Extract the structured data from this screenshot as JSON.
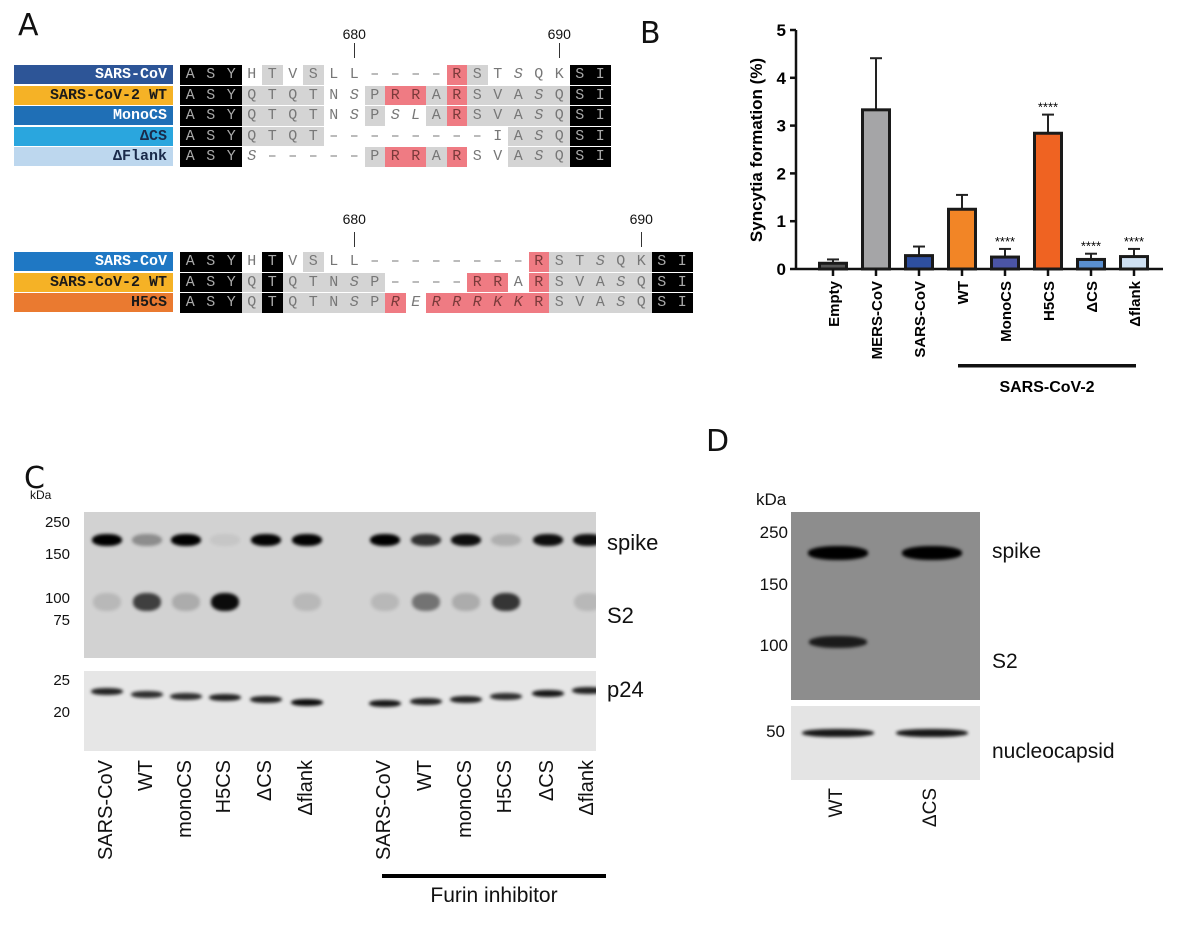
{
  "panels": {
    "a": "A",
    "b": "B",
    "c": "C",
    "d": "D"
  },
  "alignment_top": {
    "positions": [
      {
        "label": "680",
        "col": 8
      },
      {
        "label": "690",
        "col": 18
      }
    ],
    "rows": [
      {
        "name": "SARS-CoV",
        "color": "#2d5597",
        "text_color": "#ffffff",
        "seq": "ASYHTVSLL----RSTSQKSI",
        "shade": "kkk.g.g......rg....kk",
        "italic": "................i...."
      },
      {
        "name": "SARS-CoV-2 WT",
        "color": "#f5b226",
        "text_color": "#1a1a1a",
        "seq": "ASYQTQTNSPRRARSVASQSI",
        "shade": "kkkgggg..grrgrgggggkk",
        "italic": "........i........i..."
      },
      {
        "name": "MonoCS",
        "color": "#1f6fb6",
        "text_color": "#ffffff",
        "seq": "ASYQTQTNSPSLARSVASQSI",
        "shade": "kkkgggg..g..grgggggkk",
        "italic": "........i.ii.....i..."
      },
      {
        "name": "ΔCS",
        "color": "#2aa6de",
        "text_color": "#1a2a4a",
        "seq": "ASYQTQT--------IASQSI",
        "shade": "kkkgggg.........gggkk",
        "italic": ".................i..."
      },
      {
        "name": "ΔFlank",
        "color": "#bdd7ee",
        "text_color": "#1a2a4a",
        "seq": "ASYS-----PRRARSVASQSI",
        "shade": "kkk......grrgr..gggkk",
        "italic": "...i.............i..."
      }
    ]
  },
  "alignment_bottom": {
    "positions": [
      {
        "label": "680",
        "col": 8
      },
      {
        "label": "690",
        "col": 22
      }
    ],
    "rows": [
      {
        "name": "SARS-CoV",
        "color": "#1f78c4",
        "text_color": "#ffffff",
        "seq": "ASYHTVSLL--------RSTSQKSI",
        "shade": "kkk.k.g..........rgggggkk",
        "italic": "....................i...."
      },
      {
        "name": "SARS-CoV-2 WT",
        "color": "#f5b226",
        "text_color": "#1a1a1a",
        "seq": "ASYQTQTNSP----RRARSVASQSI",
        "shade": "kkkgkggggg....rr.rgggggkk",
        "italic": "........i............i..."
      },
      {
        "name": "H5CS",
        "color": "#ea7a30",
        "text_color": "#1a1a1a",
        "seq": "ASYQTQTNSPRERRRKKRSVASQSI",
        "shade": "kkkgkgggggr.rrrrrrgggggkk",
        "italic": "........i.iiiiiii....i..."
      }
    ]
  },
  "chart_data": {
    "type": "bar",
    "ylabel": "Syncytia formation (%)",
    "ylim": [
      0,
      5
    ],
    "yticks": [
      "0",
      "1",
      "2",
      "3",
      "4",
      "5"
    ],
    "categories": [
      "Empty",
      "MERS-CoV",
      "SARS-CoV",
      "WT",
      "MonoCS",
      "H5CS",
      "ΔCS",
      "Δflank"
    ],
    "values": [
      0.12,
      3.33,
      0.28,
      1.25,
      0.25,
      2.84,
      0.2,
      0.26
    ],
    "error_upper": [
      0.2,
      4.41,
      0.47,
      1.55,
      0.42,
      3.23,
      0.32,
      0.42
    ],
    "colors": [
      "#555555",
      "#a5a5a7",
      "#2e4fa0",
      "#f28526",
      "#4b55a6",
      "#ef6322",
      "#5a8fd0",
      "#cfe1f3"
    ],
    "significance": [
      "",
      "",
      "",
      "",
      "****",
      "****",
      "****",
      "****"
    ],
    "group_label": "SARS-CoV-2",
    "group_categories": [
      "WT",
      "MonoCS",
      "H5CS",
      "ΔCS",
      "Δflank"
    ]
  },
  "blot_c": {
    "kda": "kDa",
    "markers_top": [
      "250",
      "150",
      "100",
      "75"
    ],
    "markers_bottom": [
      "25",
      "20"
    ],
    "band_labels": {
      "spike": "spike",
      "s2": "S2",
      "p24": "p24"
    },
    "lanes": [
      "SARS-CoV",
      "WT",
      "monoCS",
      "H5CS",
      "ΔCS",
      "Δflank",
      "SARS-CoV",
      "WT",
      "monoCS",
      "H5CS",
      "ΔCS",
      "Δflank"
    ],
    "spike_intensity": [
      1,
      0.3,
      0.95,
      0.05,
      0.9,
      0.9,
      1,
      0.7,
      0.85,
      0.15,
      0.85,
      0.85
    ],
    "s2_intensity": [
      0.12,
      0.7,
      0.18,
      0.95,
      0,
      0.12,
      0.12,
      0.45,
      0.18,
      0.75,
      0,
      0.12
    ],
    "p24_intensity": [
      0.85,
      0.8,
      0.8,
      0.85,
      0.85,
      0.95,
      0.9,
      0.85,
      0.85,
      0.8,
      0.9,
      0.85
    ],
    "furin_label": "Furin inhibitor"
  },
  "blot_d": {
    "kda": "kDa",
    "markers_top": [
      "250",
      "150",
      "100"
    ],
    "markers_bottom": [
      "50"
    ],
    "band_labels": {
      "spike": "spike",
      "s2": "S2",
      "nucleocapsid": "nucleocapsid"
    },
    "lanes": [
      "WT",
      "ΔCS"
    ],
    "spike_intensity": [
      1,
      1
    ],
    "s2_intensity": [
      0.9,
      0
    ],
    "nucleocapsid_intensity": [
      0.9,
      0.9
    ]
  }
}
